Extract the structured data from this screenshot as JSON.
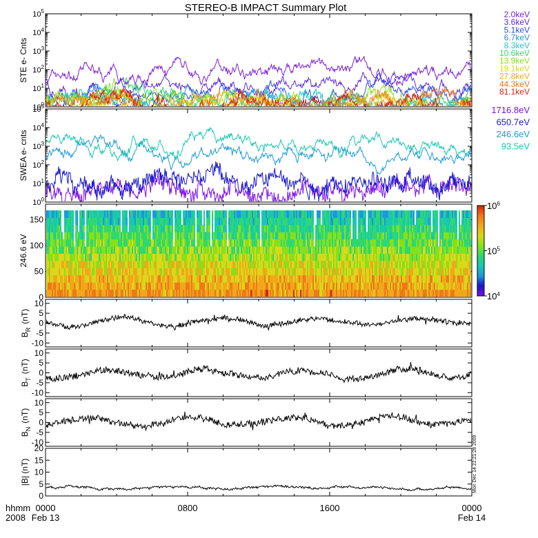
{
  "title": "STEREO-B IMPACT Summary Plot",
  "footer": {
    "time_label": "hhmm",
    "year": "2008"
  },
  "side_note": "Mon Dec 14 22:21:28 2009",
  "colors": {
    "ste": [
      "#7a1fd6",
      "#5a2ad8",
      "#2a4fe0",
      "#2a8ee0",
      "#1fc8c8",
      "#2fd870",
      "#88e01a",
      "#d8d81a",
      "#f0a81a",
      "#f07818",
      "#d82010"
    ],
    "swea": [
      "#7a10e8",
      "#1818c8",
      "#1a9ad8",
      "#18c8b0"
    ],
    "mag": "#000000",
    "frame": "#000000"
  },
  "chart_data": [
    {
      "type": "line",
      "ylabel": "STE e- Cnts",
      "yscale": "log",
      "ylim": [
        1,
        100000
      ],
      "y_ticks": [
        "10^0",
        "10^1",
        "10^2",
        "10^3",
        "10^4",
        "10^5"
      ],
      "legend": [
        "2.0keV",
        "3.6keV",
        "5.1keV",
        "6.7keV",
        "8.3keV",
        "10.6keV",
        "13.9keV",
        "19.1keV",
        "27.8keV",
        "44.3keV",
        "81.1keV"
      ],
      "series_levels": [
        50,
        12,
        6,
        3,
        2,
        1.8,
        1.6,
        1.5,
        1.4,
        1.3,
        1.2
      ]
    },
    {
      "type": "line",
      "ylabel": "SWEA e- cnts",
      "yscale": "log",
      "ylim": [
        1,
        100000
      ],
      "y_ticks": [
        "10^0",
        "10^1",
        "10^2",
        "10^3",
        "10^4",
        "10^5"
      ],
      "legend": [
        "1716.8eV",
        "650.7eV",
        "246.6eV",
        "93.5eV"
      ],
      "series_levels": [
        5,
        15,
        400,
        1200
      ]
    },
    {
      "type": "heatmap",
      "ylabel": "246.6 eV",
      "ylim": [
        0,
        180
      ],
      "y_ticks": [
        0,
        50,
        100,
        150
      ],
      "colorbar_range": [
        10000,
        1000000
      ],
      "colorbar_ticks": [
        "10^4",
        "10^5",
        "10^6"
      ],
      "colorbar_scale": "log"
    },
    {
      "type": "line",
      "ylabel_main": "B",
      "ylabel_sub": "R",
      "ylabel_unit": "(nT)",
      "ylim": [
        -12,
        12
      ],
      "y_ticks": [
        -10,
        -5,
        0,
        5,
        10
      ],
      "typical_range": [
        -3,
        4
      ]
    },
    {
      "type": "line",
      "ylabel_main": "B",
      "ylabel_sub": "T",
      "ylabel_unit": "(nT)",
      "ylim": [
        -12,
        12
      ],
      "y_ticks": [
        -10,
        -5,
        0,
        5,
        10
      ],
      "typical_range": [
        -5,
        4
      ]
    },
    {
      "type": "line",
      "ylabel_main": "B",
      "ylabel_sub": "N",
      "ylabel_unit": "(nT)",
      "ylim": [
        -12,
        12
      ],
      "y_ticks": [
        -10,
        -5,
        0,
        5,
        10
      ],
      "typical_range": [
        -4,
        5
      ]
    },
    {
      "type": "line",
      "ylabel": "|B| (nT)",
      "ylim": [
        0,
        20
      ],
      "y_ticks": [
        0,
        5,
        10,
        15,
        20
      ],
      "typical_range": [
        2.5,
        4.5
      ]
    }
  ],
  "x_axis": {
    "ticks": [
      "0000",
      "0800",
      "1600",
      "0000"
    ],
    "dates": [
      "Feb 13",
      "",
      "",
      "Feb 14"
    ],
    "xlim_hours": [
      0,
      24
    ]
  }
}
